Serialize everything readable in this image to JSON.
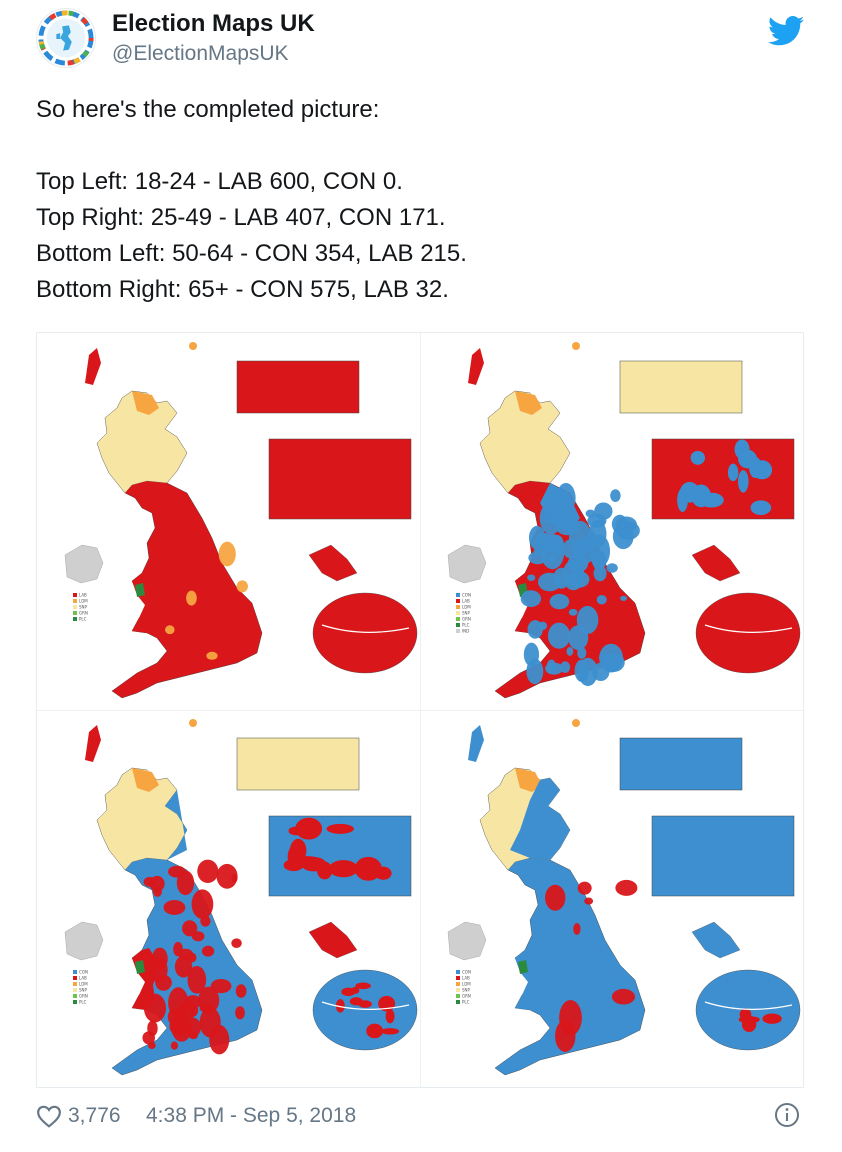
{
  "author": {
    "name": "Election Maps UK",
    "handle": "@ElectionMapsUK",
    "avatar_icon": "globe-avatar-icon",
    "verified_bird_icon": "twitter-bird-icon"
  },
  "tweet": {
    "line1": "So here's the completed picture:",
    "line2": "Top Left: 18-24 - LAB 600, CON 0.",
    "line3": "Top Right: 25-49 - LAB 407, CON 171.",
    "line4": "Bottom Left: 50-64 - CON 354, LAB 215.",
    "line5": "Bottom Right: 65+ - CON 575, LAB 32."
  },
  "colors": {
    "lab": "#d9161a",
    "con": "#3d8fcf",
    "ldm": "#f7a541",
    "snp": "#f7e6a3",
    "grn": "#6fc24b",
    "plc": "#2a8a3e",
    "ni": "#cfcfcf",
    "twitter_blue": "#1da1f2"
  },
  "maps": [
    {
      "position": "top-left",
      "base": "lab",
      "legend": [
        "LAB",
        "LDM",
        "SNP",
        "GRN",
        "PLC"
      ],
      "legend_keys": [
        "lab",
        "ldm",
        "snp",
        "grn",
        "plc"
      ]
    },
    {
      "position": "top-right",
      "base": "mix-lab",
      "legend": [
        "CON",
        "LAB",
        "LDM",
        "SNP",
        "GRN",
        "PLC",
        "IND"
      ],
      "legend_keys": [
        "con",
        "lab",
        "ldm",
        "snp",
        "grn",
        "plc",
        "ni"
      ]
    },
    {
      "position": "bottom-left",
      "base": "mix-con",
      "legend": [
        "CON",
        "LAB",
        "LDM",
        "SNP",
        "GRN",
        "PLC"
      ],
      "legend_keys": [
        "con",
        "lab",
        "ldm",
        "snp",
        "grn",
        "plc"
      ]
    },
    {
      "position": "bottom-right",
      "base": "con",
      "legend": [
        "CON",
        "LAB",
        "LDM",
        "SNP",
        "GRN",
        "PLC"
      ],
      "legend_keys": [
        "con",
        "lab",
        "ldm",
        "snp",
        "grn",
        "plc"
      ]
    }
  ],
  "footer": {
    "likes": "3,776",
    "timestamp": "4:38 PM - Sep 5, 2018",
    "heart_icon": "heart-icon",
    "info_icon": "info-icon"
  }
}
